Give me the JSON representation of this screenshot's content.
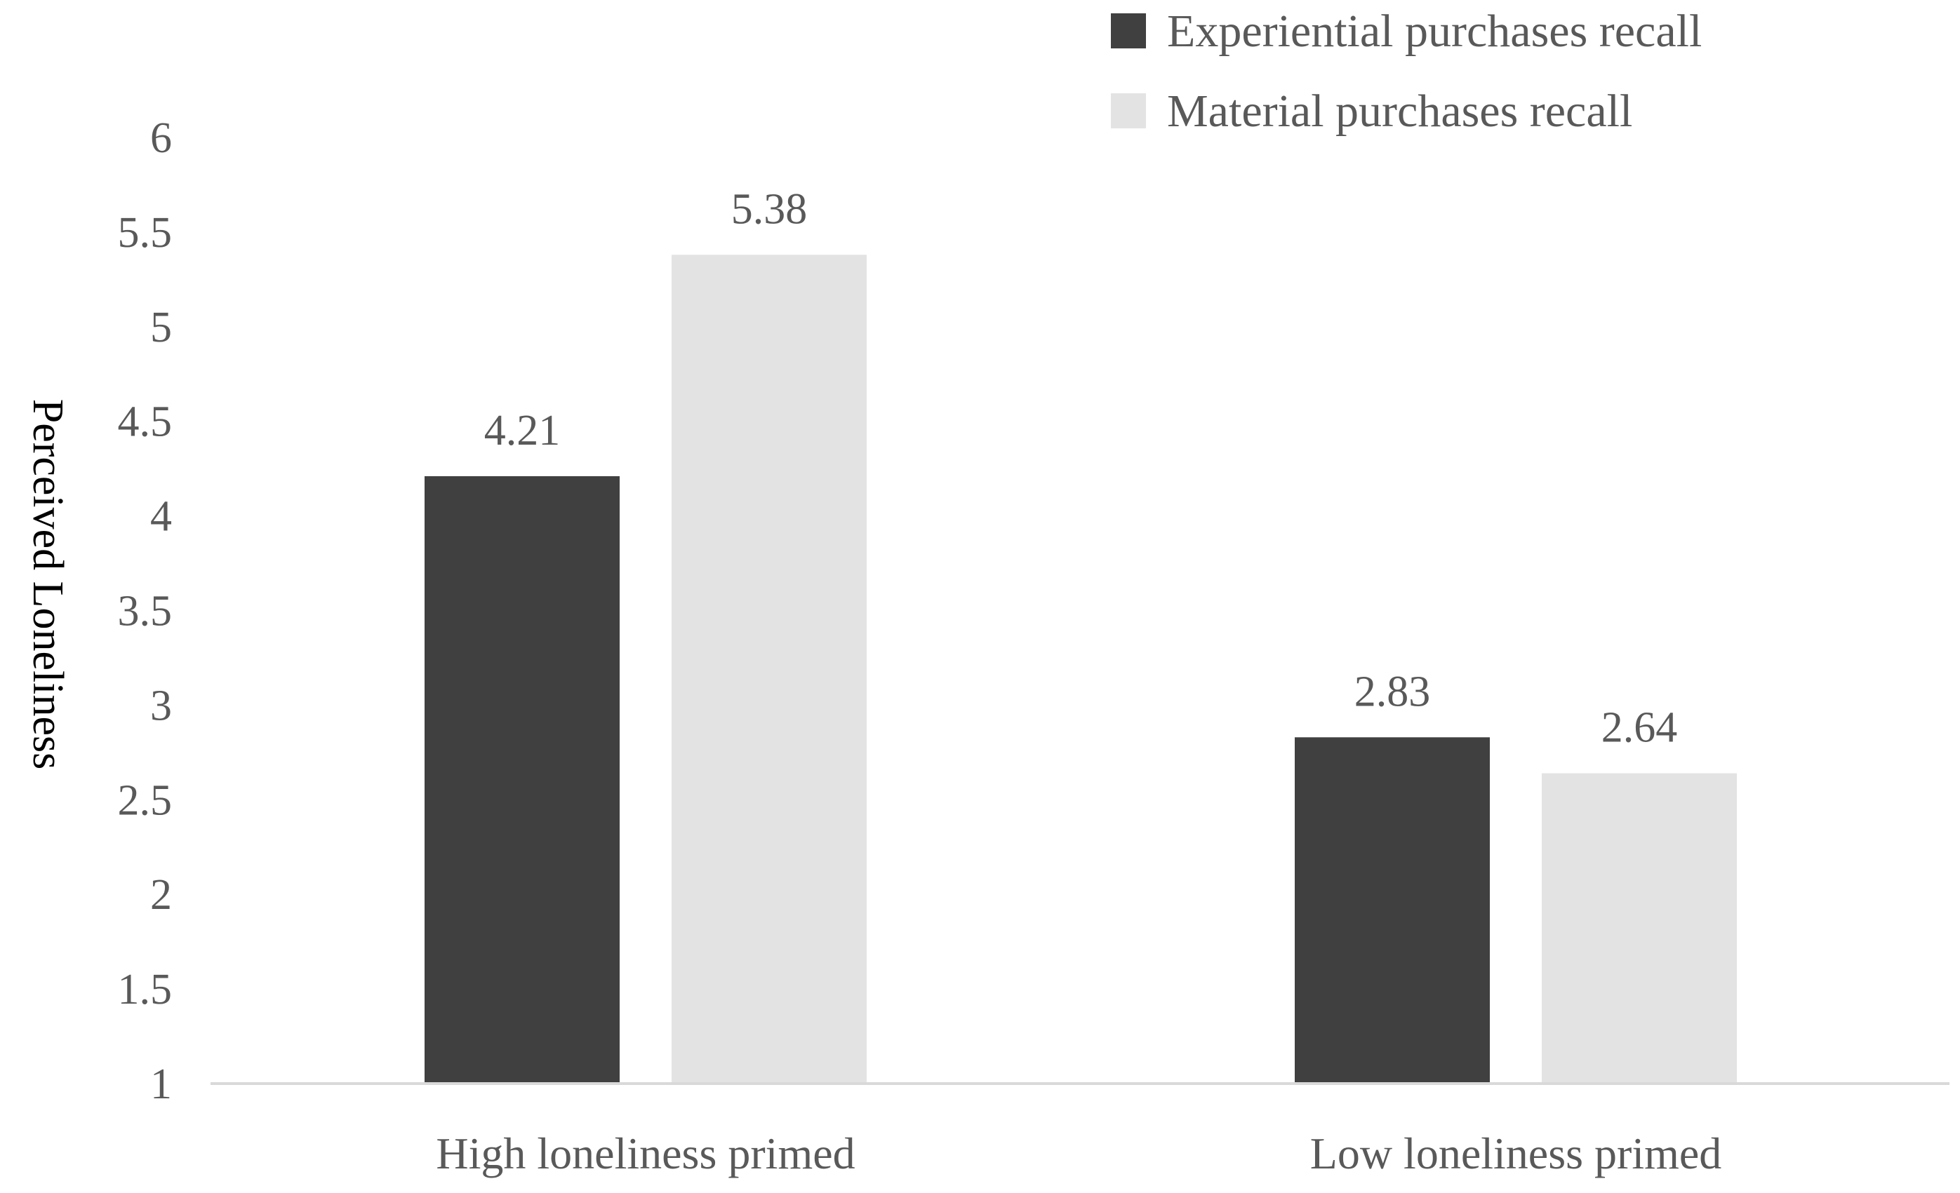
{
  "chart_data": {
    "type": "bar",
    "title": "",
    "xlabel": "",
    "ylabel": "Perceived Loneliness",
    "ylim": [
      1,
      6
    ],
    "yticks": [
      "1",
      "1.5",
      "2",
      "2.5",
      "3",
      "3.5",
      "4",
      "4.5",
      "5",
      "5.5",
      "6"
    ],
    "categories": [
      "High loneliness primed",
      "Low loneliness primed"
    ],
    "series": [
      {
        "name": "Experiential purchases recall",
        "values": [
          4.21,
          2.83
        ],
        "labels": [
          "4.21",
          "2.83"
        ],
        "color": "#404040"
      },
      {
        "name": "Material purchases recall",
        "values": [
          5.38,
          2.64
        ],
        "labels": [
          "5.38",
          "2.64"
        ],
        "color": "#e3e3e3"
      }
    ],
    "grid": false,
    "legend_position": "top-right",
    "text_color": "#595959",
    "axis_color": "#d9d9d9"
  }
}
